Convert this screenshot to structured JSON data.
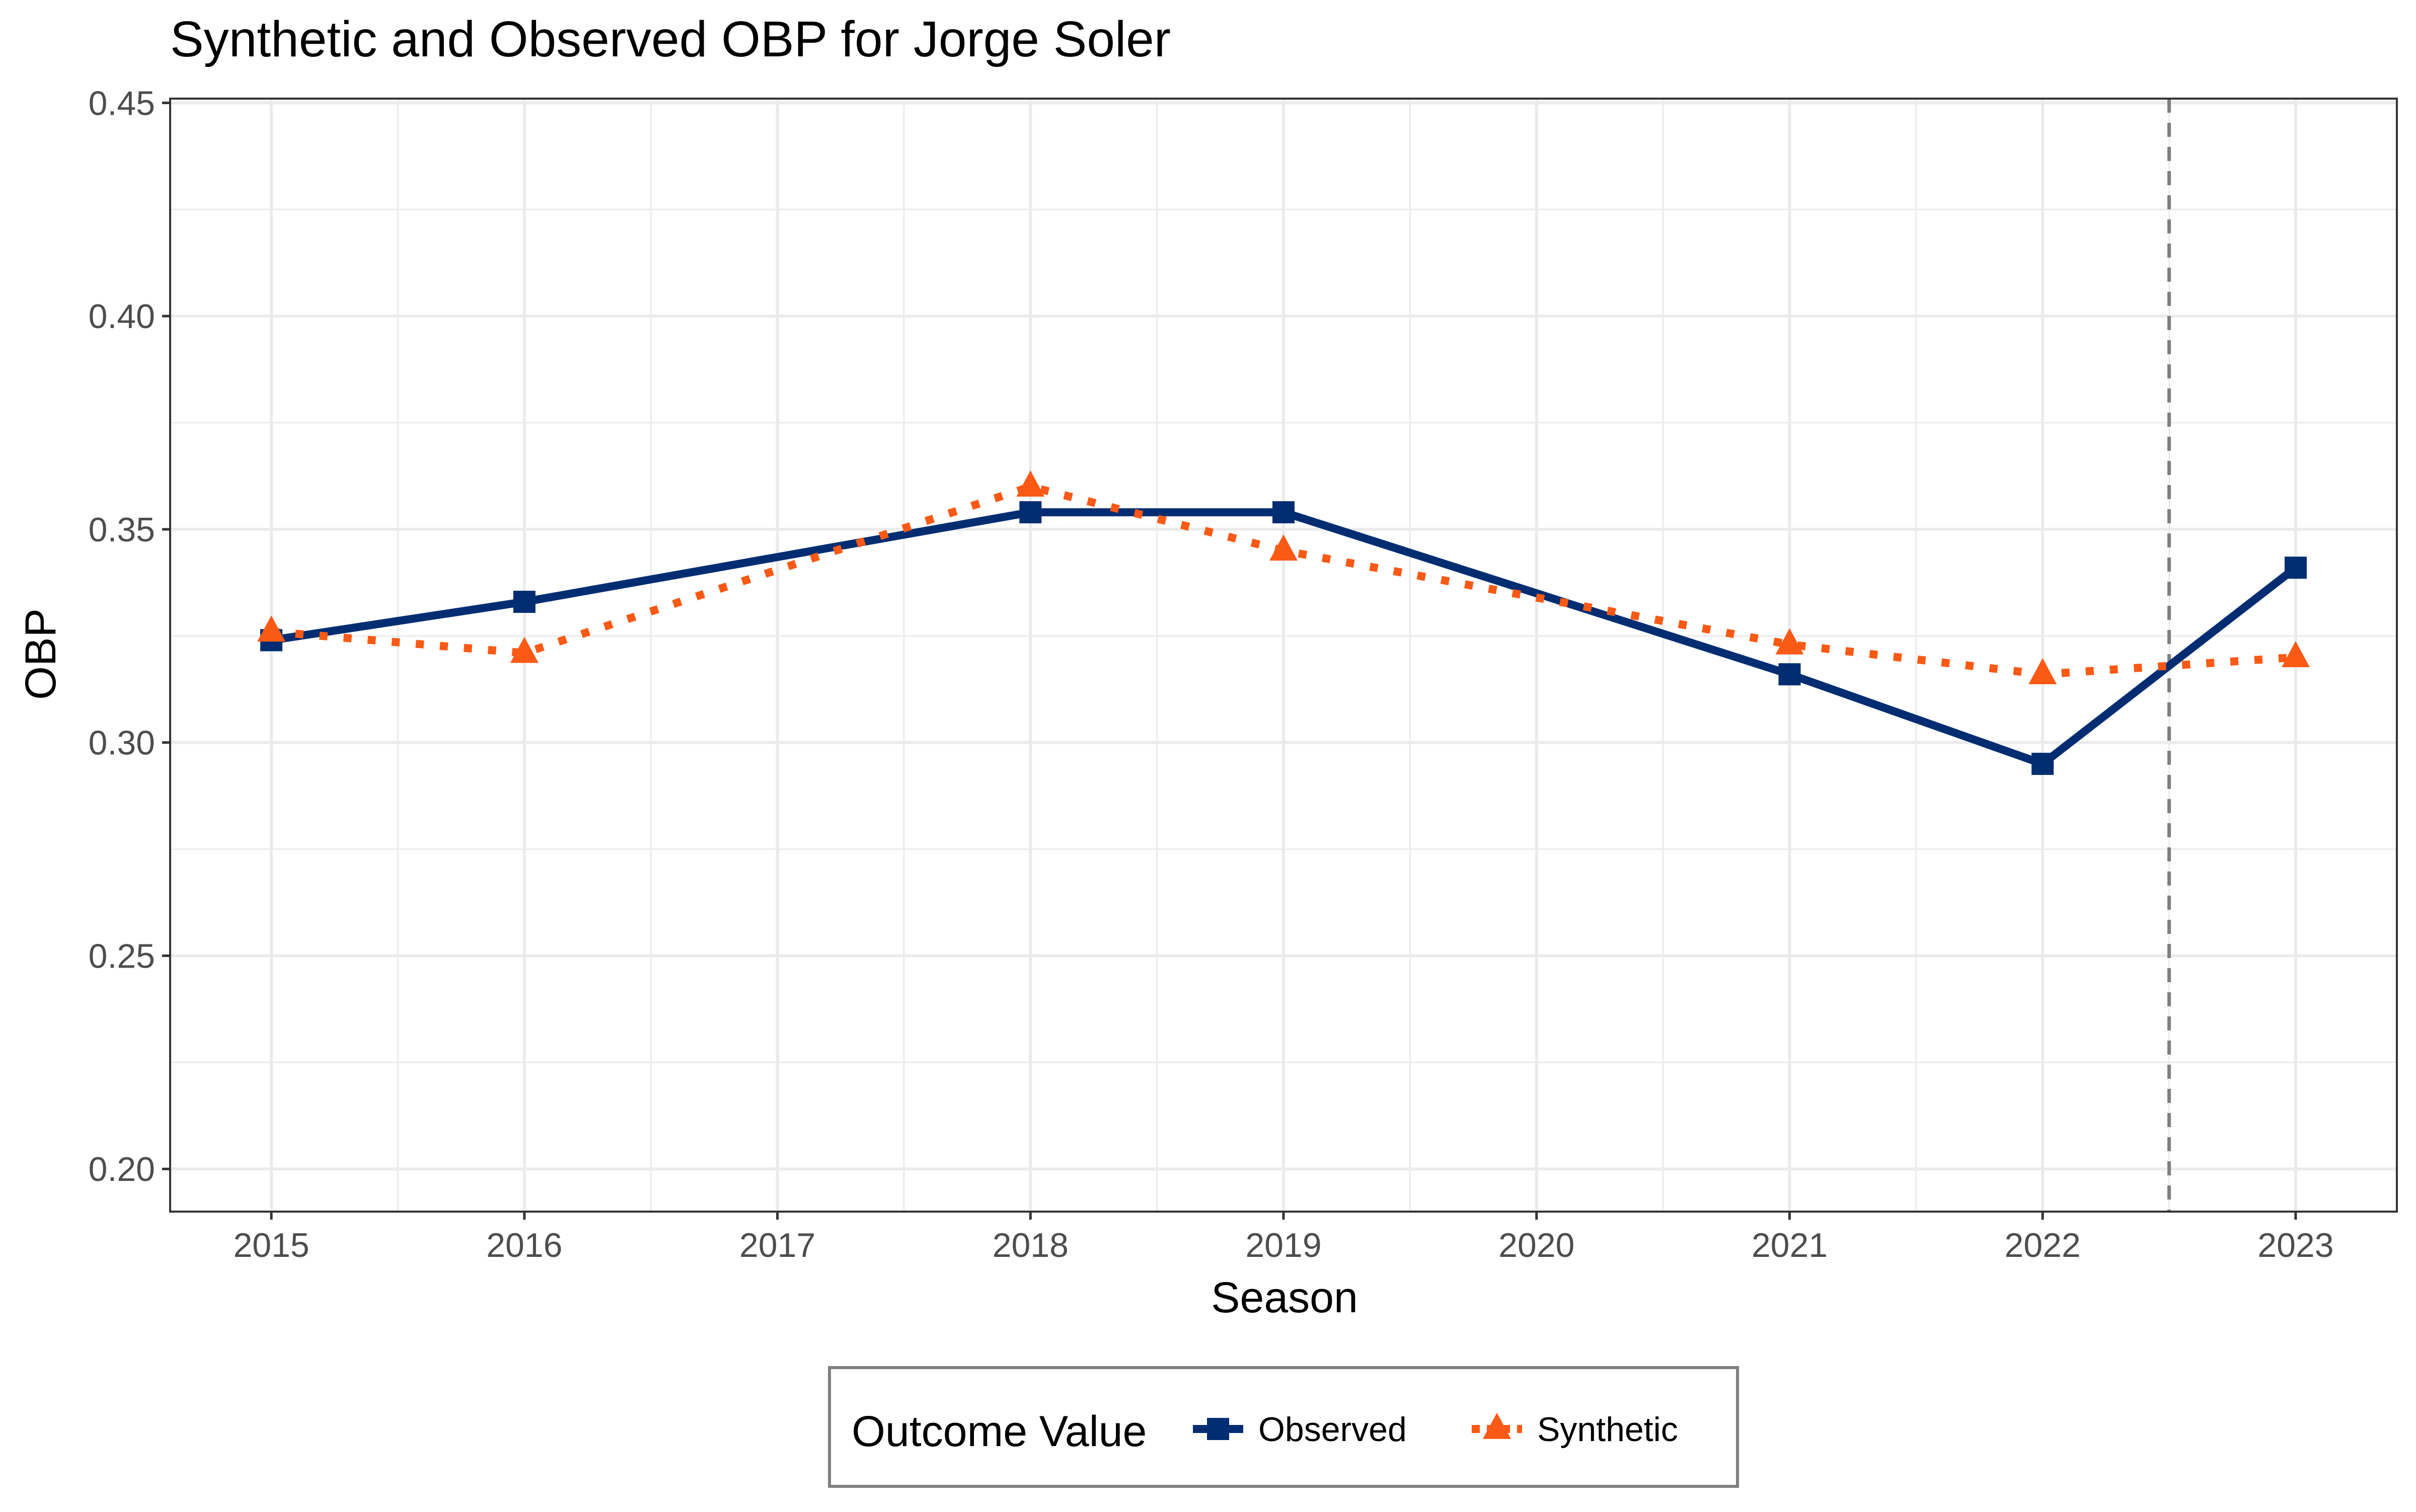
{
  "chart_data": {
    "type": "line",
    "title": "Synthetic and Observed OBP for Jorge Soler",
    "xlabel": "Season",
    "ylabel": "OBP",
    "x": [
      2015,
      2016,
      2017,
      2018,
      2019,
      2020,
      2021,
      2022,
      2023
    ],
    "x_ticks": [
      "2015",
      "2016",
      "2017",
      "2018",
      "2019",
      "2020",
      "2021",
      "2022",
      "2023"
    ],
    "y_ticks": [
      "0.20",
      "0.25",
      "0.30",
      "0.35",
      "0.40",
      "0.45"
    ],
    "xlim": [
      2014.6,
      2023.4
    ],
    "ylim": [
      0.19,
      0.451
    ],
    "grid": true,
    "reference_line": {
      "x": 2022.5,
      "style": "dashed",
      "color": "#7f7f7f"
    },
    "series": [
      {
        "name": "Observed",
        "color": "#002D72",
        "line_style": "solid",
        "marker": "square",
        "x": [
          2015,
          2016,
          2018,
          2019,
          2021,
          2022,
          2023
        ],
        "y": [
          0.324,
          0.333,
          0.354,
          0.354,
          0.316,
          0.295,
          0.341
        ]
      },
      {
        "name": "Synthetic",
        "color": "#FA5A15",
        "line_style": "dotted",
        "marker": "triangle",
        "x": [
          2015,
          2016,
          2018,
          2019,
          2021,
          2022,
          2023
        ],
        "y": [
          0.326,
          0.321,
          0.36,
          0.345,
          0.323,
          0.316,
          0.32
        ]
      }
    ],
    "legend": {
      "title": "Outcome Value",
      "position": "bottom"
    }
  }
}
